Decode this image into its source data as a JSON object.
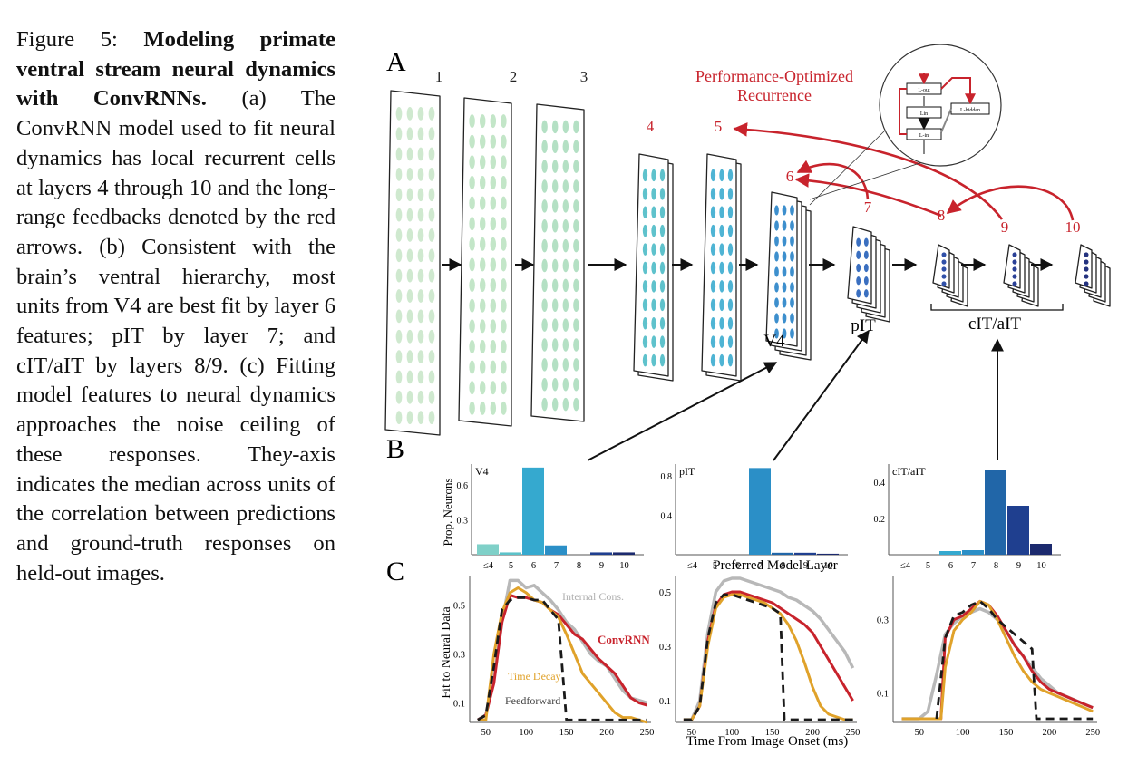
{
  "caption": {
    "label": "Figure 5:",
    "bold_title": "Modeling primate ventral stream neural dynamics with ConvRNNs.",
    "body_a": "(a) The ConvRNN model used to fit neural dynamics has local recurrent cells at layers 4 through 10 and the long-range feedbacks denoted by the red arrows.",
    "body_b": "(b) Consistent with the brain’s ventral hierarchy, most units from V4 are best fit by layer 6 features; pIT by layer 7; and cIT/aIT by layers 8/9.",
    "body_c": "(c) Fitting model features to neural dynamics approaches the noise ceiling of these responses. The",
    "y_var": "y",
    "body_d": "-axis indicates the median across units of the correlation between predictions and ground-truth responses on held-out images."
  },
  "panel_a": {
    "panel_letter": "A",
    "layer_numbers": [
      "1",
      "2",
      "3",
      "4",
      "5",
      "6",
      "7",
      "8",
      "9",
      "10"
    ],
    "annotation_line1": "Performance-Optimized",
    "annotation_line2": "Recurrence",
    "area_labels": {
      "v4": "V4",
      "pit": "pIT",
      "citait": "cIT/aIT"
    },
    "cell_labels": [
      "L-out",
      "Lin",
      "L-in",
      "L-hidden"
    ],
    "colors": {
      "feedback_red": "#c8232c",
      "early_layer": "#a9d8b0",
      "mid_layer": "#3cb4c8",
      "late_layer": "#1f3f8f"
    }
  },
  "panel_b": {
    "panel_letter": "B",
    "xlabel": "Preferred Model Layer",
    "ylabel": "Prop. Neurons"
  },
  "panel_c": {
    "panel_letter": "C",
    "ylabel": "Fit to Neural Data",
    "xlabel": "Time From Image Onset (ms)",
    "legend": {
      "internal": "Internal Cons.",
      "convrnn": "ConvRNN",
      "timedecay": "Time Decay",
      "feedforward": "Feedforward"
    },
    "series_colors": {
      "internal": "#b8b8b8",
      "convrnn": "#c8232c",
      "timedecay": "#e0a22a",
      "feedforward": "#1a1a1a"
    }
  },
  "chart_data": [
    {
      "type": "bar",
      "title": "V4",
      "categories": [
        "≤4",
        "5",
        "6",
        "7",
        "8",
        "9",
        "10"
      ],
      "values": [
        0.09,
        0.02,
        0.75,
        0.08,
        0.0,
        0.02,
        0.02
      ],
      "yticks": [
        "0.3",
        "0.6"
      ],
      "ylim": [
        0,
        0.78
      ],
      "xlabel": "",
      "ylabel": "Prop. Neurons",
      "colors": [
        "#7fd0c8",
        "#5cc2c9",
        "#35a9cf",
        "#2b8fc7",
        "#2166a8",
        "#1f3f8f",
        "#1c2a6e"
      ]
    },
    {
      "type": "bar",
      "title": "pIT",
      "categories": [
        "≤4",
        "5",
        "6",
        "7",
        "8",
        "9",
        "10"
      ],
      "values": [
        0.0,
        0.0,
        0.0,
        0.88,
        0.02,
        0.02,
        0.01
      ],
      "yticks": [
        "0.4",
        "0.8"
      ],
      "ylim": [
        0,
        0.92
      ],
      "xlabel": "Preferred Model Layer",
      "ylabel": "",
      "colors": [
        "#7fd0c8",
        "#5cc2c9",
        "#35a9cf",
        "#2b8fc7",
        "#2166a8",
        "#1f3f8f",
        "#1c2a6e"
      ]
    },
    {
      "type": "bar",
      "title": "cIT/aIT",
      "categories": [
        "≤4",
        "5",
        "6",
        "7",
        "8",
        "9",
        "10"
      ],
      "values": [
        0.0,
        0.0,
        0.02,
        0.025,
        0.47,
        0.27,
        0.06
      ],
      "yticks": [
        "0.2",
        "0.4"
      ],
      "ylim": [
        0,
        0.5
      ],
      "xlabel": "",
      "ylabel": "",
      "colors": [
        "#7fd0c8",
        "#5cc2c9",
        "#35a9cf",
        "#2b8fc7",
        "#2166a8",
        "#1f3f8f",
        "#1c2a6e"
      ]
    },
    {
      "type": "line",
      "title": "",
      "xlim": [
        30,
        255
      ],
      "ylim": [
        0.02,
        0.62
      ],
      "xticks": [
        50,
        100,
        150,
        200,
        250
      ],
      "yticks": [
        0.1,
        0.3,
        0.5
      ],
      "xlabel": "",
      "ylabel": "Fit to Neural Data",
      "series": [
        {
          "name": "Internal Cons.",
          "x": [
            40,
            50,
            60,
            70,
            80,
            90,
            100,
            110,
            120,
            130,
            140,
            150,
            160,
            170,
            180,
            190,
            200,
            210,
            220,
            230,
            240,
            250
          ],
          "y": [
            0.03,
            0.05,
            0.2,
            0.43,
            0.6,
            0.6,
            0.57,
            0.58,
            0.55,
            0.52,
            0.48,
            0.43,
            0.4,
            0.35,
            0.3,
            0.27,
            0.25,
            0.2,
            0.15,
            0.12,
            0.11,
            0.1
          ]
        },
        {
          "name": "ConvRNN",
          "x": [
            40,
            50,
            60,
            70,
            80,
            90,
            100,
            110,
            120,
            130,
            140,
            150,
            160,
            170,
            180,
            190,
            200,
            210,
            220,
            230,
            240,
            250
          ],
          "y": [
            0.03,
            0.05,
            0.18,
            0.43,
            0.54,
            0.53,
            0.53,
            0.52,
            0.51,
            0.48,
            0.46,
            0.42,
            0.38,
            0.36,
            0.32,
            0.28,
            0.25,
            0.22,
            0.17,
            0.12,
            0.1,
            0.09
          ]
        },
        {
          "name": "Time Decay",
          "x": [
            40,
            50,
            60,
            70,
            80,
            90,
            100,
            110,
            120,
            130,
            140,
            150,
            160,
            170,
            180,
            190,
            200,
            210,
            220,
            230,
            240,
            250
          ],
          "y": [
            0.03,
            0.03,
            0.3,
            0.47,
            0.55,
            0.57,
            0.55,
            0.52,
            0.51,
            0.48,
            0.45,
            0.38,
            0.3,
            0.22,
            0.18,
            0.14,
            0.1,
            0.06,
            0.04,
            0.04,
            0.03,
            0.02
          ]
        },
        {
          "name": "Feedforward",
          "x": [
            40,
            50,
            60,
            70,
            80,
            90,
            100,
            110,
            120,
            130,
            140,
            150,
            155,
            160,
            170,
            180,
            190,
            200,
            210,
            220,
            230,
            240,
            250
          ],
          "y": [
            0.03,
            0.05,
            0.25,
            0.48,
            0.52,
            0.53,
            0.53,
            0.52,
            0.52,
            0.48,
            0.44,
            0.03,
            0.03,
            0.03,
            0.03,
            0.03,
            0.03,
            0.03,
            0.03,
            0.03,
            0.03,
            0.03,
            0.03
          ]
        }
      ]
    },
    {
      "type": "line",
      "title": "",
      "xlim": [
        30,
        255
      ],
      "ylim": [
        0.02,
        0.56
      ],
      "xticks": [
        50,
        100,
        150,
        200,
        250
      ],
      "yticks": [
        0.1,
        0.3,
        0.5
      ],
      "xlabel": "Time From Image Onset (ms)",
      "ylabel": "",
      "series": [
        {
          "name": "Internal Cons.",
          "x": [
            40,
            50,
            60,
            70,
            80,
            90,
            100,
            110,
            120,
            130,
            140,
            150,
            160,
            170,
            180,
            190,
            200,
            210,
            220,
            230,
            240,
            250
          ],
          "y": [
            0.03,
            0.03,
            0.1,
            0.35,
            0.5,
            0.54,
            0.55,
            0.55,
            0.54,
            0.53,
            0.52,
            0.51,
            0.5,
            0.48,
            0.47,
            0.45,
            0.43,
            0.4,
            0.36,
            0.32,
            0.28,
            0.22
          ]
        },
        {
          "name": "ConvRNN",
          "x": [
            40,
            50,
            60,
            70,
            80,
            90,
            100,
            110,
            120,
            130,
            140,
            150,
            160,
            170,
            180,
            190,
            200,
            210,
            220,
            230,
            240,
            250
          ],
          "y": [
            0.03,
            0.03,
            0.08,
            0.32,
            0.45,
            0.49,
            0.5,
            0.5,
            0.49,
            0.48,
            0.47,
            0.46,
            0.44,
            0.42,
            0.4,
            0.38,
            0.35,
            0.3,
            0.25,
            0.2,
            0.15,
            0.1
          ]
        },
        {
          "name": "Time Decay",
          "x": [
            40,
            50,
            60,
            70,
            80,
            90,
            100,
            110,
            120,
            130,
            140,
            150,
            160,
            170,
            180,
            190,
            200,
            210,
            220,
            230,
            240,
            250
          ],
          "y": [
            0.03,
            0.03,
            0.08,
            0.3,
            0.44,
            0.48,
            0.49,
            0.49,
            0.48,
            0.47,
            0.46,
            0.44,
            0.42,
            0.38,
            0.32,
            0.24,
            0.15,
            0.08,
            0.05,
            0.04,
            0.03,
            0.03
          ]
        },
        {
          "name": "Feedforward",
          "x": [
            40,
            50,
            60,
            70,
            80,
            90,
            100,
            110,
            120,
            130,
            140,
            150,
            160,
            165,
            170,
            180,
            190,
            200,
            210,
            220,
            230,
            240,
            250
          ],
          "y": [
            0.03,
            0.03,
            0.08,
            0.33,
            0.46,
            0.49,
            0.49,
            0.48,
            0.47,
            0.46,
            0.45,
            0.44,
            0.42,
            0.03,
            0.03,
            0.03,
            0.03,
            0.03,
            0.03,
            0.03,
            0.03,
            0.03,
            0.03
          ]
        }
      ]
    },
    {
      "type": "line",
      "title": "",
      "xlim": [
        20,
        255
      ],
      "ylim": [
        0.02,
        0.42
      ],
      "xticks": [
        50,
        100,
        150,
        200,
        250
      ],
      "yticks": [
        0.1,
        0.3
      ],
      "xlabel": "",
      "ylabel": "",
      "series": [
        {
          "name": "Internal Cons.",
          "x": [
            30,
            40,
            50,
            60,
            70,
            80,
            90,
            100,
            110,
            120,
            130,
            140,
            150,
            160,
            170,
            180,
            190,
            200,
            210,
            220,
            230,
            240,
            250
          ],
          "y": [
            0.03,
            0.03,
            0.03,
            0.05,
            0.15,
            0.26,
            0.29,
            0.31,
            0.32,
            0.33,
            0.32,
            0.3,
            0.27,
            0.23,
            0.2,
            0.17,
            0.14,
            0.12,
            0.1,
            0.09,
            0.08,
            0.07,
            0.06
          ]
        },
        {
          "name": "ConvRNN",
          "x": [
            30,
            40,
            50,
            60,
            70,
            75,
            80,
            90,
            100,
            110,
            120,
            130,
            140,
            150,
            160,
            170,
            180,
            190,
            200,
            210,
            220,
            230,
            240,
            250
          ],
          "y": [
            0.03,
            0.03,
            0.03,
            0.03,
            0.03,
            0.03,
            0.25,
            0.3,
            0.31,
            0.33,
            0.35,
            0.34,
            0.31,
            0.27,
            0.23,
            0.2,
            0.16,
            0.13,
            0.11,
            0.1,
            0.09,
            0.08,
            0.07,
            0.06
          ]
        },
        {
          "name": "Time Decay",
          "x": [
            30,
            40,
            50,
            60,
            70,
            75,
            80,
            90,
            100,
            110,
            120,
            130,
            140,
            150,
            160,
            170,
            180,
            190,
            200,
            210,
            220,
            230,
            240,
            250
          ],
          "y": [
            0.03,
            0.03,
            0.03,
            0.03,
            0.03,
            0.03,
            0.17,
            0.27,
            0.3,
            0.32,
            0.35,
            0.34,
            0.3,
            0.25,
            0.2,
            0.16,
            0.13,
            0.11,
            0.1,
            0.09,
            0.08,
            0.07,
            0.06,
            0.05
          ]
        },
        {
          "name": "Feedforward",
          "x": [
            70,
            80,
            90,
            100,
            110,
            120,
            130,
            140,
            150,
            160,
            170,
            180,
            185,
            190,
            200,
            210,
            220,
            230,
            240,
            250
          ],
          "y": [
            0.03,
            0.25,
            0.31,
            0.32,
            0.34,
            0.35,
            0.33,
            0.3,
            0.28,
            0.26,
            0.24,
            0.22,
            0.03,
            0.03,
            0.03,
            0.03,
            0.03,
            0.03,
            0.03,
            0.03
          ]
        }
      ]
    }
  ]
}
